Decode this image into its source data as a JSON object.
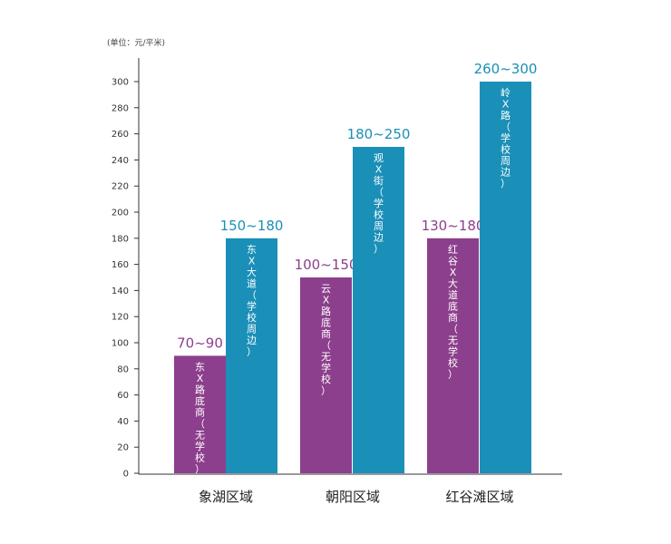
{
  "chart_data": {
    "type": "bar",
    "title": "",
    "unit_label": "(单位：元/平米)",
    "xlabel": "",
    "ylabel": "",
    "ylim": [
      0,
      300
    ],
    "yticks": [
      0,
      20,
      40,
      60,
      80,
      100,
      120,
      140,
      160,
      180,
      200,
      220,
      240,
      260,
      280,
      300
    ],
    "grid": false,
    "legend": "none",
    "categories": [
      "象湖区域",
      "朝阳区域",
      "红谷滩区域"
    ],
    "bars": [
      {
        "category": "象湖区域",
        "color": "#8c3f8c",
        "value": 90,
        "range_label": "70~90",
        "inner_label": "东X路底商（无学校）"
      },
      {
        "category": "象湖区域",
        "color": "#1a8fb8",
        "value": 180,
        "range_label": "150~180",
        "inner_label": "东X大道（学校周边）"
      },
      {
        "category": "朝阳区域",
        "color": "#8c3f8c",
        "value": 150,
        "range_label": "100~150",
        "inner_label": "云X路底商（无学校）"
      },
      {
        "category": "朝阳区域",
        "color": "#1a8fb8",
        "value": 250,
        "range_label": "180~250",
        "inner_label": "观X街（学校周边）"
      },
      {
        "category": "红谷滩区域",
        "color": "#8c3f8c",
        "value": 180,
        "range_label": "130~180",
        "inner_label": "红谷X大道底商（无学校）"
      },
      {
        "category": "红谷滩区域",
        "color": "#1a8fb8",
        "value": 300,
        "range_label": "260~300",
        "inner_label": "岭X路（学校周边）"
      }
    ]
  }
}
